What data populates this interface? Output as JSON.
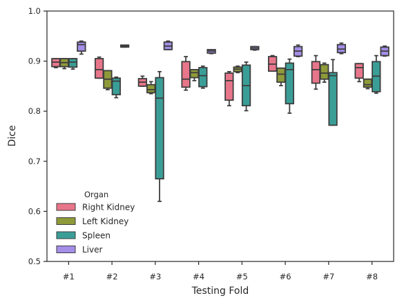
{
  "chart_data": {
    "type": "box",
    "xlabel": "Testing Fold",
    "ylabel": "Dice",
    "ylim": [
      0.5,
      1.0
    ],
    "yticks": [
      "0.5",
      "0.6",
      "0.7",
      "0.8",
      "0.9",
      "1.0"
    ],
    "categories": [
      "#1",
      "#2",
      "#3",
      "#4",
      "#5",
      "#6",
      "#7",
      "#8"
    ],
    "grid": false,
    "legend": {
      "title": "Organ",
      "position": "lower-left"
    },
    "series": [
      {
        "name": "Right Kidney",
        "color": "#e8768a",
        "boxes": [
          {
            "whislo": 0.887,
            "q1": 0.889,
            "med": 0.898,
            "q3": 0.905,
            "whishi": 0.905
          },
          {
            "whislo": 0.866,
            "q1": 0.866,
            "med": 0.883,
            "q3": 0.905,
            "whishi": 0.908
          },
          {
            "whislo": 0.85,
            "q1": 0.85,
            "med": 0.858,
            "q3": 0.865,
            "whishi": 0.87
          },
          {
            "whislo": 0.842,
            "q1": 0.848,
            "med": 0.864,
            "q3": 0.899,
            "whishi": 0.909
          },
          {
            "whislo": 0.811,
            "q1": 0.822,
            "med": 0.861,
            "q3": 0.876,
            "whishi": 0.879
          },
          {
            "whislo": 0.88,
            "q1": 0.88,
            "med": 0.894,
            "q3": 0.909,
            "whishi": 0.911
          },
          {
            "whislo": 0.844,
            "q1": 0.856,
            "med": 0.883,
            "q3": 0.899,
            "whishi": 0.911
          },
          {
            "whislo": 0.859,
            "q1": 0.866,
            "med": 0.887,
            "q3": 0.895,
            "whishi": 0.895
          }
        ]
      },
      {
        "name": "Left Kidney",
        "color": "#8f9a3a",
        "boxes": [
          {
            "whislo": 0.885,
            "q1": 0.889,
            "med": 0.897,
            "q3": 0.905,
            "whishi": 0.905
          },
          {
            "whislo": 0.843,
            "q1": 0.846,
            "med": 0.864,
            "q3": 0.881,
            "whishi": 0.881
          },
          {
            "whislo": 0.835,
            "q1": 0.837,
            "med": 0.843,
            "q3": 0.853,
            "whishi": 0.859
          },
          {
            "whislo": 0.861,
            "q1": 0.867,
            "med": 0.877,
            "q3": 0.883,
            "whishi": 0.883
          },
          {
            "whislo": 0.877,
            "q1": 0.879,
            "med": 0.884,
            "q3": 0.888,
            "whishi": 0.89
          },
          {
            "whislo": 0.851,
            "q1": 0.858,
            "med": 0.874,
            "q3": 0.886,
            "whishi": 0.886
          },
          {
            "whislo": 0.858,
            "q1": 0.864,
            "med": 0.876,
            "q3": 0.893,
            "whishi": 0.896
          },
          {
            "whislo": 0.845,
            "q1": 0.848,
            "med": 0.853,
            "q3": 0.864,
            "whishi": 0.864
          }
        ]
      },
      {
        "name": "Spleen",
        "color": "#3a9e97",
        "boxes": [
          {
            "whislo": 0.884,
            "q1": 0.888,
            "med": 0.898,
            "q3": 0.905,
            "whishi": 0.905
          },
          {
            "whislo": 0.827,
            "q1": 0.833,
            "med": 0.86,
            "q3": 0.866,
            "whishi": 0.868
          },
          {
            "whislo": 0.62,
            "q1": 0.665,
            "med": 0.826,
            "q3": 0.867,
            "whishi": 0.879
          },
          {
            "whislo": 0.846,
            "q1": 0.849,
            "med": 0.871,
            "q3": 0.887,
            "whishi": 0.89
          },
          {
            "whislo": 0.801,
            "q1": 0.811,
            "med": 0.851,
            "q3": 0.892,
            "whishi": 0.898
          },
          {
            "whislo": 0.796,
            "q1": 0.815,
            "med": 0.883,
            "q3": 0.896,
            "whishi": 0.904
          },
          {
            "whislo": 0.772,
            "q1": 0.772,
            "med": 0.871,
            "q3": 0.877,
            "whishi": 0.903
          },
          {
            "whislo": 0.836,
            "q1": 0.839,
            "med": 0.87,
            "q3": 0.899,
            "whishi": 0.911
          }
        ]
      },
      {
        "name": "Liver",
        "color": "#a48ee8",
        "boxes": [
          {
            "whislo": 0.914,
            "q1": 0.92,
            "med": 0.933,
            "q3": 0.938,
            "whishi": 0.94
          },
          {
            "whislo": 0.928,
            "q1": 0.928,
            "med": 0.93,
            "q3": 0.932,
            "whishi": 0.932
          },
          {
            "whislo": 0.923,
            "q1": 0.923,
            "med": 0.93,
            "q3": 0.938,
            "whishi": 0.94
          },
          {
            "whislo": 0.915,
            "q1": 0.916,
            "med": 0.92,
            "q3": 0.923,
            "whishi": 0.923
          },
          {
            "whislo": 0.922,
            "q1": 0.923,
            "med": 0.926,
            "q3": 0.929,
            "whishi": 0.929
          },
          {
            "whislo": 0.909,
            "q1": 0.91,
            "med": 0.92,
            "q3": 0.929,
            "whishi": 0.932
          },
          {
            "whislo": 0.915,
            "q1": 0.917,
            "med": 0.924,
            "q3": 0.933,
            "whishi": 0.936
          },
          {
            "whislo": 0.91,
            "q1": 0.911,
            "med": 0.92,
            "q3": 0.928,
            "whishi": 0.93
          }
        ]
      }
    ]
  }
}
